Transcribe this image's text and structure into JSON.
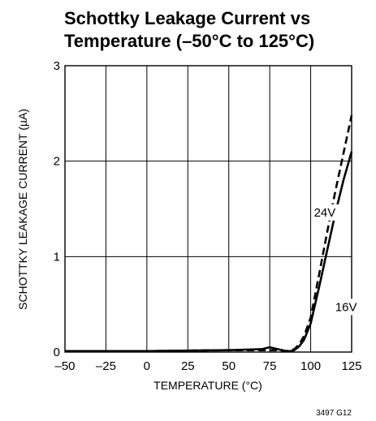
{
  "chart_data": {
    "type": "line",
    "title_lines": [
      "Schottky Leakage Current vs",
      "Temperature (–50°C to 125°C)"
    ],
    "xlabel": "TEMPERATURE (°C)",
    "ylabel": "SCHOTTKY LEAKAGE CURRENT (µA)",
    "xlim": [
      -50,
      125
    ],
    "ylim": [
      0,
      3
    ],
    "x_ticks": [
      -50,
      -25,
      0,
      25,
      50,
      75,
      100,
      125
    ],
    "x_tick_labels": [
      "–50",
      "–25",
      "0",
      "25",
      "50",
      "75",
      "100",
      "125"
    ],
    "y_ticks": [
      0,
      1,
      2,
      3
    ],
    "y_tick_labels": [
      "0",
      "1",
      "2",
      "3"
    ],
    "grid": true,
    "series": [
      {
        "name": "24V",
        "style": "dashed",
        "x": [
          -50,
          0,
          50,
          70,
          75,
          80,
          85,
          88,
          90,
          93,
          96,
          100,
          105,
          110,
          115,
          120,
          125
        ],
        "y": [
          0.01,
          0.01,
          0.02,
          0.02,
          0.02,
          0.02,
          0.01,
          0.02,
          0.03,
          0.08,
          0.17,
          0.36,
          0.8,
          1.25,
          1.68,
          2.08,
          2.48
        ]
      },
      {
        "name": "16V",
        "style": "solid",
        "x": [
          -50,
          0,
          50,
          70,
          75,
          80,
          85,
          88,
          90,
          93,
          96,
          100,
          105,
          110,
          115,
          120,
          125
        ],
        "y": [
          0.01,
          0.01,
          0.02,
          0.03,
          0.05,
          0.03,
          0.01,
          0.01,
          0.02,
          0.06,
          0.13,
          0.3,
          0.67,
          1.06,
          1.45,
          1.8,
          2.1
        ]
      }
    ],
    "annotations": [
      {
        "text": "24V",
        "x": 102,
        "y": 1.42
      },
      {
        "text": "16V",
        "x": 115,
        "y": 0.43
      }
    ],
    "figure_code": "3497 G12"
  }
}
